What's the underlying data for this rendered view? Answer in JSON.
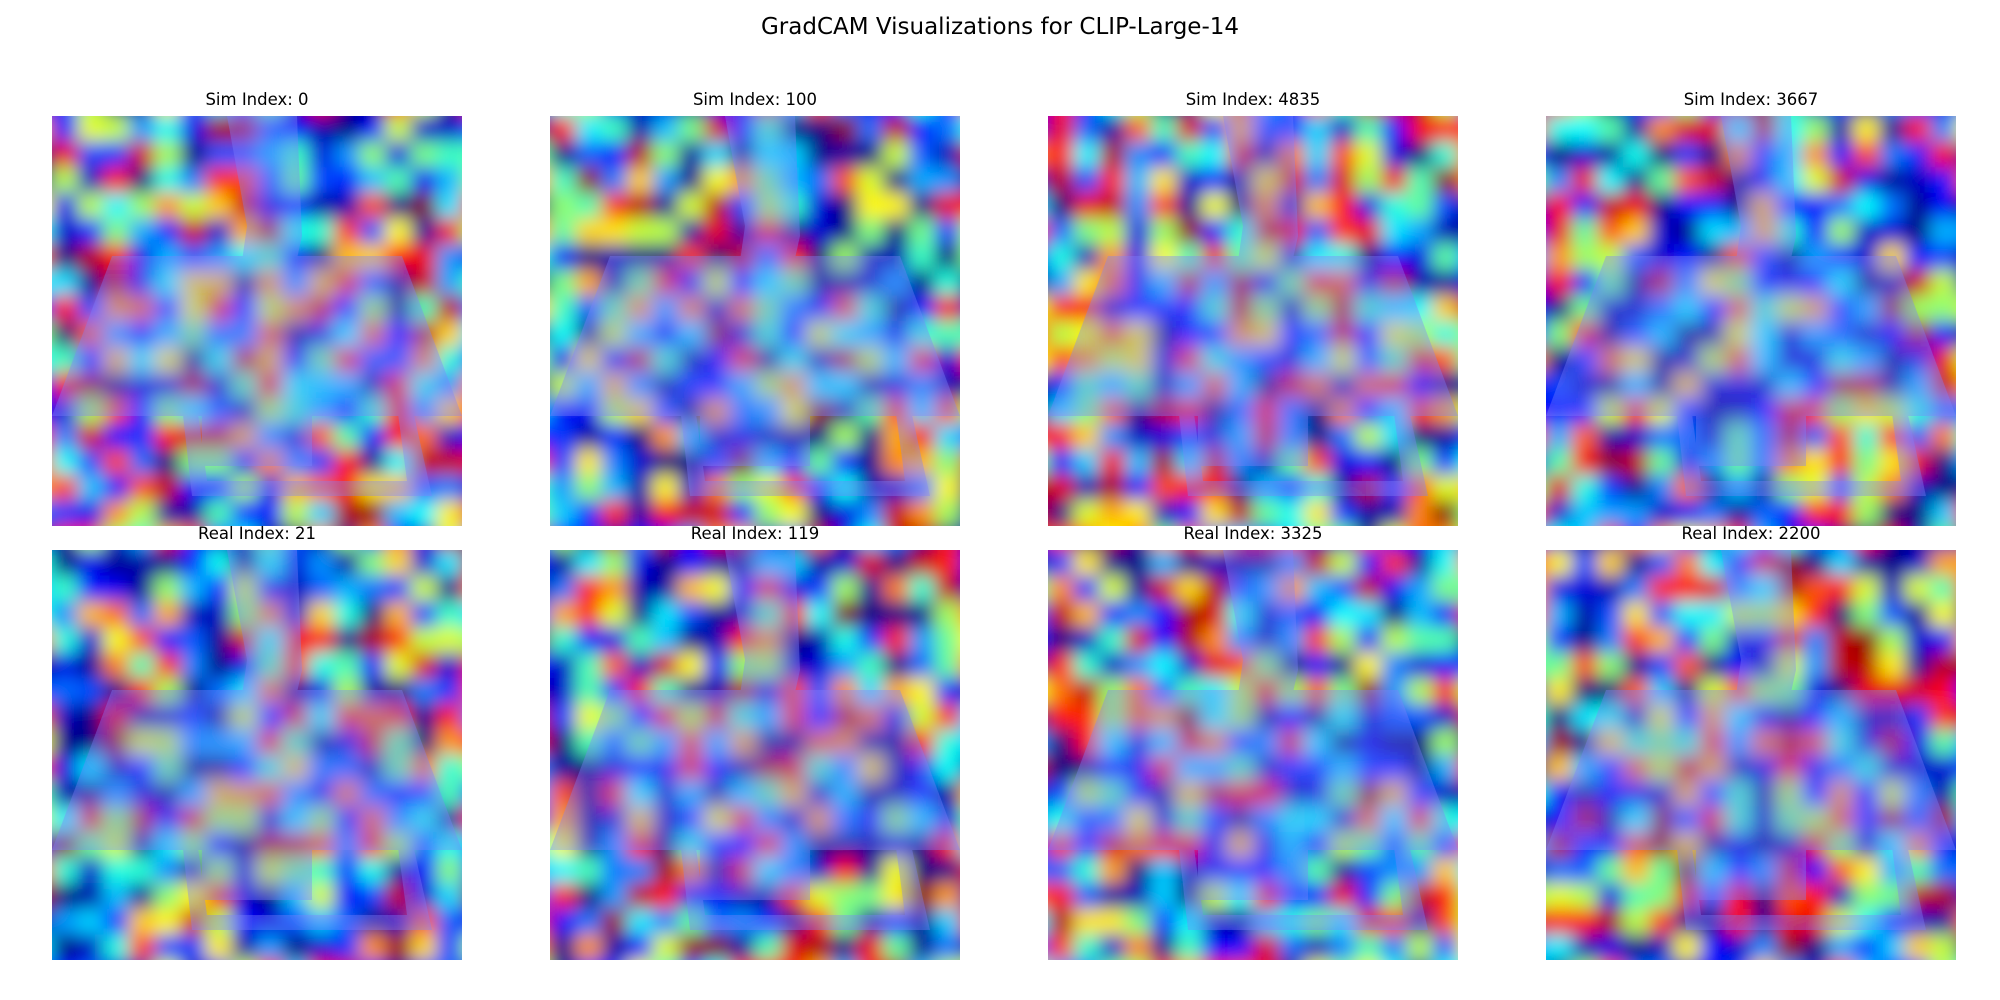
{
  "figure": {
    "title": "GradCAM Visualizations for CLIP-Large-14",
    "colormap": "jet",
    "overlay_tint": "#7f82ff"
  },
  "panels": [
    {
      "label": "Sim Index: 0",
      "domain": "sim",
      "seed": 11
    },
    {
      "label": "Sim Index: 100",
      "domain": "sim",
      "seed": 23
    },
    {
      "label": "Sim Index: 4835",
      "domain": "sim",
      "seed": 37
    },
    {
      "label": "Sim Index: 3667",
      "domain": "sim",
      "seed": 41
    },
    {
      "label": "Real Index: 21",
      "domain": "real",
      "seed": 53
    },
    {
      "label": "Real Index: 119",
      "domain": "real",
      "seed": 67
    },
    {
      "label": "Real Index: 3325",
      "domain": "real",
      "seed": 79
    },
    {
      "label": "Real Index: 2200",
      "domain": "real",
      "seed": 97
    }
  ]
}
